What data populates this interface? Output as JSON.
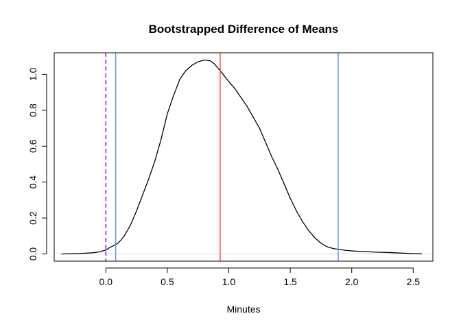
{
  "chart_data": {
    "type": "line",
    "title": "Bootstrapped Difference of Means",
    "xlabel": "Minutes",
    "ylabel": "",
    "xlim": [
      -0.42,
      2.66
    ],
    "ylim": [
      -0.04,
      1.12
    ],
    "xticks": [
      0.0,
      0.5,
      1.0,
      1.5,
      2.0,
      2.5
    ],
    "xtick_labels": [
      "0.0",
      "0.5",
      "1.0",
      "1.5",
      "2.0",
      "2.5"
    ],
    "yticks": [
      0.0,
      0.2,
      0.4,
      0.6,
      0.8,
      1.0
    ],
    "ytick_labels": [
      "0.0",
      "0.2",
      "0.4",
      "0.6",
      "0.8",
      "1.0"
    ],
    "grid": false,
    "series": [
      {
        "color": "#000000",
        "x": [
          -0.36,
          -0.3,
          -0.2,
          -0.1,
          -0.05,
          0.0,
          0.03,
          0.06,
          0.09,
          0.12,
          0.15,
          0.2,
          0.25,
          0.3,
          0.35,
          0.4,
          0.45,
          0.5,
          0.55,
          0.6,
          0.65,
          0.7,
          0.75,
          0.8,
          0.85,
          0.88,
          0.93,
          1.0,
          1.05,
          1.1,
          1.15,
          1.2,
          1.25,
          1.3,
          1.35,
          1.4,
          1.45,
          1.5,
          1.55,
          1.6,
          1.65,
          1.7,
          1.75,
          1.8,
          1.85,
          1.9,
          1.95,
          2.0,
          2.1,
          2.2,
          2.3,
          2.4,
          2.5,
          2.57
        ],
        "y": [
          0.0,
          0.001,
          0.003,
          0.007,
          0.012,
          0.022,
          0.035,
          0.045,
          0.055,
          0.075,
          0.1,
          0.16,
          0.24,
          0.33,
          0.42,
          0.52,
          0.64,
          0.78,
          0.88,
          0.97,
          1.02,
          1.05,
          1.07,
          1.08,
          1.075,
          1.06,
          1.02,
          0.96,
          0.92,
          0.87,
          0.82,
          0.76,
          0.7,
          0.62,
          0.54,
          0.47,
          0.39,
          0.31,
          0.24,
          0.18,
          0.13,
          0.09,
          0.06,
          0.04,
          0.03,
          0.025,
          0.02,
          0.017,
          0.013,
          0.01,
          0.008,
          0.005,
          0.002,
          0.001
        ]
      }
    ],
    "vlines": [
      {
        "x": 0.0,
        "color": "#9900ff",
        "style": "dashed"
      },
      {
        "x": 0.08,
        "color": "#6495ed",
        "style": "solid"
      },
      {
        "x": 0.93,
        "color": "#ff4d2e",
        "style": "solid"
      },
      {
        "x": 1.89,
        "color": "#6495ed",
        "style": "solid"
      }
    ],
    "hlines": [
      {
        "y": 0.0,
        "color": "#d9d9d9",
        "style": "solid"
      }
    ]
  }
}
